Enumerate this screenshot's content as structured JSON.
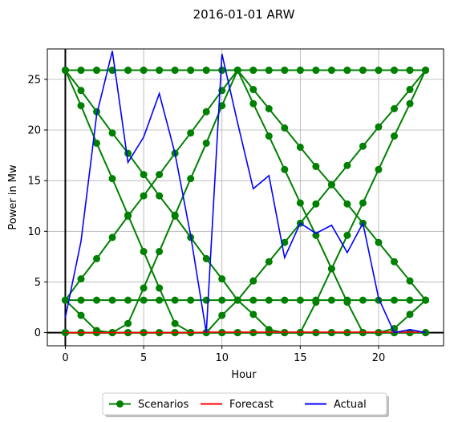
{
  "chart_data": {
    "type": "line",
    "title": "2016-01-01 ARW",
    "xlabel": "Hour",
    "ylabel": "Power in Mw",
    "xlim": [
      -1.15,
      24.15
    ],
    "ylim": [
      -1.3,
      28.0
    ],
    "x_ticks": [
      0,
      5,
      10,
      15,
      20
    ],
    "y_ticks": [
      0,
      5,
      10,
      15,
      20,
      25
    ],
    "grid": true,
    "legend_position": "bottom-center",
    "x": [
      0,
      1,
      2,
      3,
      4,
      5,
      6,
      7,
      8,
      9,
      10,
      11,
      12,
      13,
      14,
      15,
      16,
      17,
      18,
      19,
      20,
      21,
      22,
      23
    ],
    "series": [
      {
        "name": "Scenarios",
        "color": "#008000",
        "marker": "circle",
        "values": [
          25.9,
          25.9,
          25.9,
          25.9,
          25.9,
          25.9,
          25.9,
          25.9,
          25.9,
          25.9,
          25.9,
          25.9,
          25.9,
          25.9,
          25.9,
          25.9,
          25.9,
          25.9,
          25.9,
          25.9,
          25.9,
          25.9,
          25.9,
          25.9
        ]
      },
      {
        "values": [
          3.2,
          3.2,
          3.2,
          3.2,
          3.2,
          3.2,
          3.2,
          3.2,
          3.2,
          3.2,
          3.2,
          3.2,
          3.2,
          3.2,
          3.2,
          3.2,
          3.2,
          3.2,
          3.2,
          3.2,
          3.2,
          3.2,
          3.2,
          3.2
        ]
      },
      {
        "values": [
          0,
          0,
          0,
          0,
          0,
          0,
          0,
          0,
          0,
          0,
          0,
          0,
          0,
          0,
          0,
          0,
          0,
          0,
          0,
          0,
          0,
          0,
          0,
          0
        ]
      },
      {
        "values": [
          25.9,
          23.9,
          21.8,
          19.7,
          17.7,
          15.6,
          13.5,
          11.5,
          9.4,
          7.3,
          5.3,
          3.2,
          1.8,
          0.3,
          0,
          0,
          0,
          0,
          0,
          0,
          0,
          0,
          0,
          0
        ]
      },
      {
        "values": [
          3.2,
          5.3,
          7.3,
          9.4,
          11.5,
          13.5,
          15.6,
          17.7,
          19.7,
          21.8,
          23.9,
          25.9,
          25.9,
          25.9,
          25.9,
          25.9,
          25.9,
          25.9,
          25.9,
          25.9,
          25.9,
          25.9,
          25.9,
          25.9
        ]
      },
      {
        "values": [
          0,
          0,
          0,
          0,
          0,
          0,
          0,
          0,
          0,
          0,
          1.7,
          3.2,
          5.1,
          7.0,
          8.9,
          10.8,
          12.7,
          14.6,
          16.5,
          18.4,
          20.3,
          22.1,
          24.0,
          25.9
        ]
      },
      {
        "values": [
          25.9,
          25.9,
          25.9,
          25.9,
          25.9,
          25.9,
          25.9,
          25.9,
          25.9,
          25.9,
          25.9,
          25.9,
          24.0,
          22.1,
          20.2,
          18.3,
          16.4,
          14.6,
          12.7,
          10.8,
          8.9,
          7.0,
          5.1,
          3.2
        ]
      },
      {
        "values": [
          25.9,
          22.4,
          18.7,
          15.2,
          11.6,
          8.0,
          4.4,
          0.9,
          0,
          0,
          0,
          0,
          0,
          0,
          0,
          0,
          0,
          0,
          0,
          0,
          0,
          0,
          0,
          0
        ]
      },
      {
        "values": [
          0,
          0,
          0,
          0,
          0.9,
          4.4,
          8.0,
          11.6,
          15.2,
          18.7,
          22.4,
          25.9,
          22.6,
          19.4,
          16.1,
          12.8,
          9.6,
          6.3,
          3.0,
          0,
          0,
          0,
          0,
          0
        ]
      },
      {
        "values": [
          3.2,
          1.7,
          0.2,
          0,
          0,
          0,
          0,
          0,
          0,
          0,
          0,
          0,
          0,
          0,
          0,
          0,
          3.0,
          6.3,
          9.6,
          12.8,
          16.1,
          19.4,
          22.6,
          25.9
        ]
      },
      {
        "values": [
          0,
          0,
          0,
          0,
          0,
          0,
          0,
          0,
          0,
          0,
          0,
          0,
          0,
          0,
          0,
          0,
          0,
          0,
          0,
          0,
          0,
          0.4,
          1.8,
          3.2
        ]
      },
      {
        "name": "Forecast",
        "color": "#ff0000",
        "values": [
          0,
          0,
          0,
          0,
          0,
          0,
          0,
          0,
          0,
          0.05,
          0.05,
          0.05,
          0.05,
          0.05,
          0.05,
          0.05,
          0.05,
          0.05,
          0.05,
          0.05,
          0.05,
          0.05,
          0.05,
          0.05
        ]
      },
      {
        "name": "Actual",
        "color": "#0000ff",
        "values": [
          1.5,
          9.0,
          21.5,
          27.8,
          16.8,
          19.3,
          23.6,
          17.7,
          9.6,
          0,
          27.5,
          20.7,
          14.2,
          15.5,
          7.4,
          10.8,
          9.8,
          10.6,
          7.9,
          10.8,
          3.4,
          0,
          0.3,
          0
        ]
      }
    ]
  }
}
